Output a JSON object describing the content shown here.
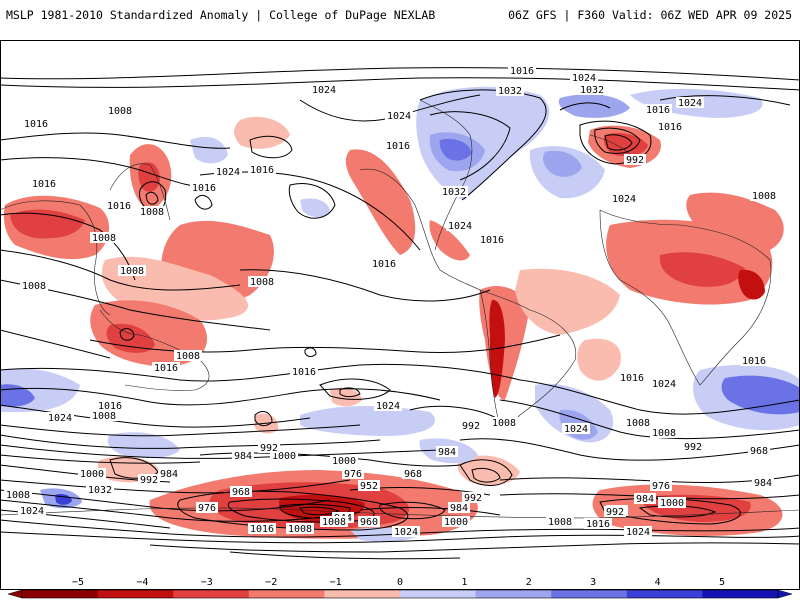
{
  "header": {
    "title_left": "MSLP 1981-2010 Standardized Anomaly | College of DuPage NEXLAB",
    "title_right": "06Z GFS | F360 Valid: 06Z WED APR 09 2025"
  },
  "map": {
    "isobar_labels": [
      "1016",
      "1024",
      "1032",
      "1024",
      "1032",
      "1016",
      "1024",
      "1008",
      "1016",
      "1024",
      "1016",
      "992",
      "1016",
      "1024",
      "1016",
      "1032",
      "1024",
      "1016",
      "1008",
      "1016",
      "1008",
      "1008",
      "1016",
      "1008",
      "1008",
      "1016",
      "1008",
      "1016",
      "1024",
      "1016",
      "1016",
      "1008",
      "1016",
      "1024",
      "1016",
      "1008",
      "1016",
      "1024",
      "1016",
      "1024",
      "1024",
      "1008",
      "1008",
      "992",
      "992",
      "1008",
      "1000",
      "984",
      "992",
      "1000",
      "976",
      "968",
      "984",
      "992",
      "984",
      "968",
      "952",
      "976",
      "984",
      "1000",
      "1032",
      "992",
      "984",
      "1008",
      "1024",
      "968",
      "976",
      "984",
      "992",
      "1016",
      "1008",
      "1000",
      "1008",
      "944",
      "960",
      "1024",
      "1000",
      "1008",
      "1016",
      "992",
      "1024"
    ],
    "colors": {
      "neg5": "#8b0000",
      "neg4": "#c21010",
      "neg3": "#e04040",
      "neg2": "#f27a6e",
      "neg1": "#fbbcb0",
      "pos1": "#c8cdf6",
      "pos2": "#9ea5ef",
      "pos3": "#6a72e6",
      "pos4": "#3a3fd8",
      "pos5": "#1414b4"
    }
  },
  "colorbar": {
    "ticks": [
      "−5",
      "−4",
      "−3",
      "−2",
      "−1",
      "0",
      "1",
      "2",
      "3",
      "4",
      "5"
    ],
    "colors": [
      "#8b0000",
      "#c21010",
      "#e04040",
      "#f27a6e",
      "#fbbcb0",
      "#ffffff",
      "#c8cdf6",
      "#9ea5ef",
      "#6a72e6",
      "#3a3fd8",
      "#1414b4"
    ]
  }
}
